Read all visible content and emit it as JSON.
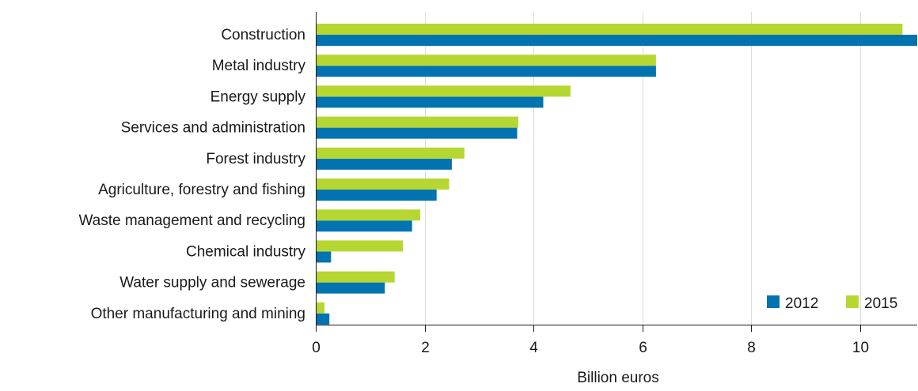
{
  "chart_data": {
    "type": "bar",
    "orientation": "horizontal",
    "categories": [
      "Construction",
      "Metal industry",
      "Energy supply",
      "Services and administration",
      "Forest industry",
      "Agriculture, forestry and fishing",
      "Waste management and recycling",
      "Chemical industry",
      "Water supply and sewerage",
      "Other manufacturing and mining"
    ],
    "series": [
      {
        "name": "2012",
        "color": "#0073b0",
        "values": [
          11.05,
          6.25,
          4.18,
          3.7,
          2.5,
          2.22,
          1.77,
          0.28,
          1.27,
          0.25
        ]
      },
      {
        "name": "2015",
        "color": "#b6d732",
        "values": [
          10.78,
          6.25,
          4.68,
          3.72,
          2.73,
          2.45,
          1.92,
          1.6,
          1.45,
          0.16
        ]
      }
    ],
    "xlabel": "Billion euros",
    "xlim": [
      0,
      11.05
    ],
    "xticks": [
      0,
      2,
      4,
      6,
      8,
      10
    ],
    "grid": true,
    "legend_position": "bottom-right"
  }
}
